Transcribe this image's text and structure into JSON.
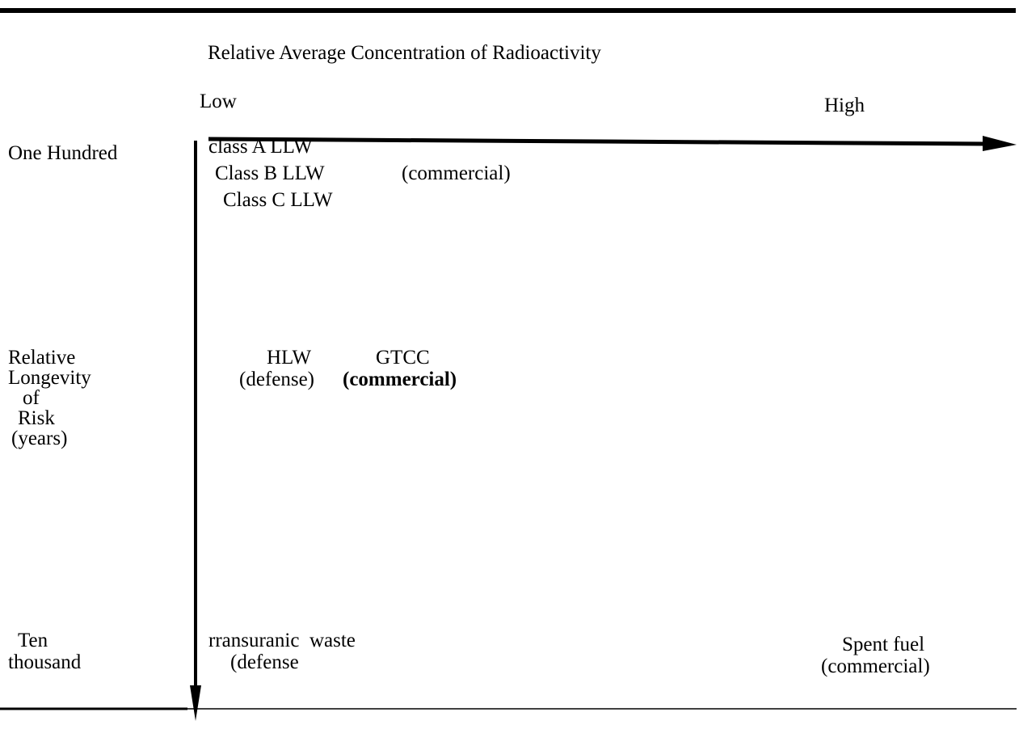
{
  "x_axis": {
    "title": "Relative Average Concentration of Radioactivity",
    "low": "Low",
    "high": "High"
  },
  "y_axis": {
    "top": "One Hundred",
    "title_lines": [
      "Relative",
      "Longevity",
      "of",
      "Risk",
      "(years)"
    ],
    "bottom_lines": [
      "Ten",
      "thousand"
    ]
  },
  "items": {
    "llw": {
      "class_a": "class A LLW",
      "class_b": "Class B LLW",
      "class_c": "Class C LLW",
      "source": "(commercial)"
    },
    "hlw": {
      "label": "HLW",
      "source": "(defense)"
    },
    "gtcc": {
      "label": "GTCC",
      "source": "(commercial)"
    },
    "transuranic": {
      "label": "rransuranic  waste",
      "source": "(defense"
    },
    "spent_fuel": {
      "label": "Spent fuel",
      "source": "(commercial)"
    }
  }
}
